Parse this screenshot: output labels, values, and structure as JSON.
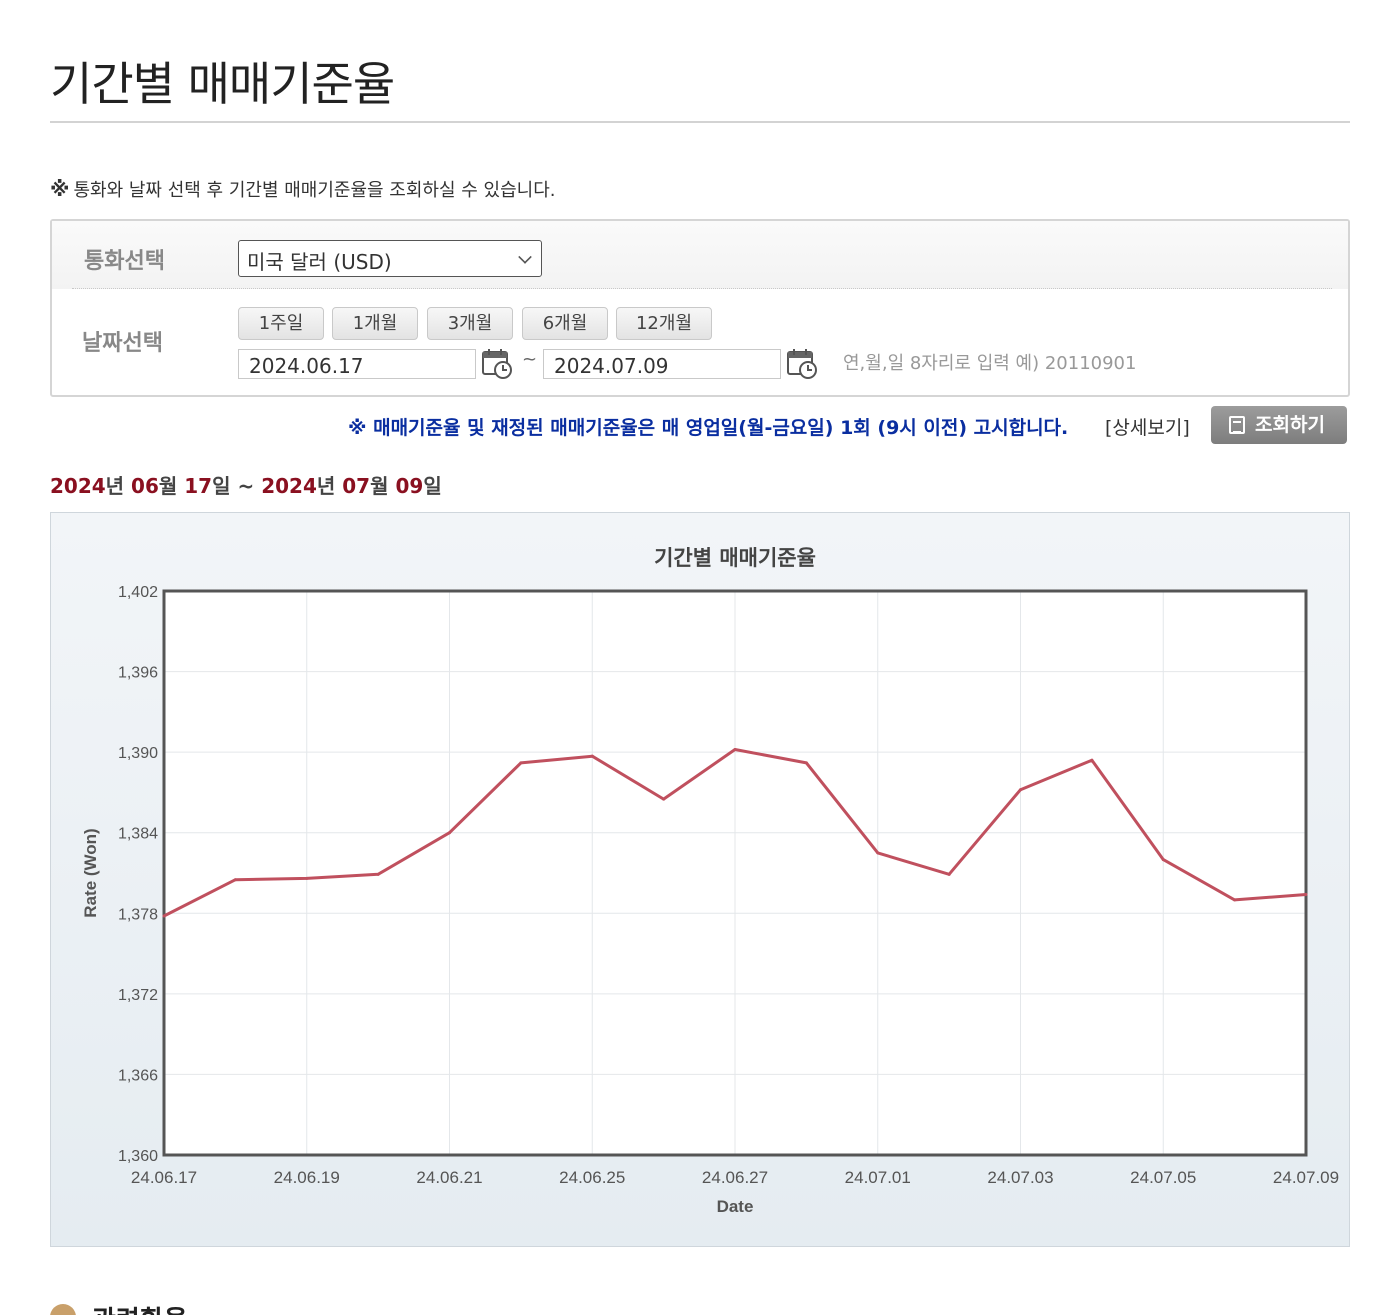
{
  "page": {
    "title": "기간별 매매기준율",
    "notice_mark": "※",
    "notice": "통화와 날짜 선택 후 기간별 매매기준율을 조회하실 수 있습니다."
  },
  "form": {
    "currency_label": "통화선택",
    "currency_value": "미국 달러 (USD)",
    "date_label": "날짜선택",
    "periods": [
      "1주일",
      "1개월",
      "3개월",
      "6개월",
      "12개월"
    ],
    "start_date": "2024.06.17",
    "end_date": "2024.07.09",
    "tilde": "~",
    "hint": "연,월,일 8자리로 입력 예) 20110901"
  },
  "info": {
    "line": "※ 매매기준율 및 재정된 매매기준율은 매 영업일(월-금요일) 1회 (9시 이전) 고시합니다.",
    "detail_link": "[상세보기]",
    "inquire_button": "조회하기"
  },
  "range": {
    "y1": "2024",
    "y_suffix1": "년 ",
    "m1": "06",
    "m_suffix1": "월 ",
    "d1": "17",
    "d_suffix1": "일 ~ ",
    "y2": "2024",
    "y_suffix2": "년 ",
    "m2": "07",
    "m_suffix2": "월 ",
    "d2": "09",
    "d_suffix2": "일"
  },
  "chart_data": {
    "type": "line",
    "title": "기간별 매매기준율",
    "xlabel": "Date",
    "ylabel": "Rate (Won)",
    "ylim": [
      1360,
      1402
    ],
    "yticks": [
      "1,360",
      "1,366",
      "1,372",
      "1,378",
      "1,384",
      "1,390",
      "1,396",
      "1,402"
    ],
    "xticks": [
      "24.06.17",
      "24.06.19",
      "24.06.21",
      "24.06.25",
      "24.06.27",
      "24.07.01",
      "24.07.03",
      "24.07.05",
      "24.07.09"
    ],
    "grid": true,
    "line_color": "#c0505e",
    "x": [
      "24.06.17",
      "24.06.18",
      "24.06.19",
      "24.06.20",
      "24.06.21",
      "24.06.24",
      "24.06.25",
      "24.06.26",
      "24.06.27",
      "24.06.28",
      "24.07.01",
      "24.07.02",
      "24.07.03",
      "24.07.04",
      "24.07.05",
      "24.07.08",
      "24.07.09"
    ],
    "values": [
      1377.8,
      1380.5,
      1380.6,
      1380.9,
      1384.0,
      1389.2,
      1389.7,
      1386.5,
      1390.2,
      1389.2,
      1382.5,
      1380.9,
      1387.2,
      1389.4,
      1382.0,
      1379.0,
      1379.4
    ]
  },
  "next_section": {
    "title": "관련환율"
  }
}
